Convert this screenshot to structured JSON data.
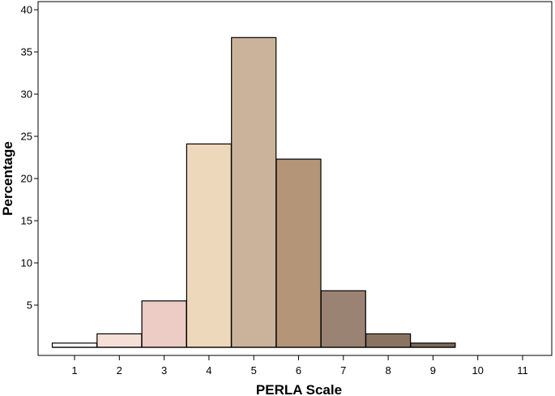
{
  "chart_data": {
    "type": "bar",
    "title": "",
    "xlabel": "PERLA Scale",
    "ylabel": "Percentage",
    "categories": [
      "1",
      "2",
      "3",
      "4",
      "5",
      "6",
      "7",
      "8",
      "9",
      "10",
      "11"
    ],
    "values": [
      0.5,
      1.6,
      5.5,
      24.1,
      36.7,
      22.3,
      6.7,
      1.6,
      0.5,
      0,
      0
    ],
    "ylim": [
      0,
      40
    ],
    "yticks": [
      5,
      10,
      15,
      20,
      25,
      30,
      35,
      40
    ],
    "grid": false,
    "legend": "none",
    "colors": [
      "#ffffff",
      "#f6dfd6",
      "#ecccc5",
      "#eed8bb",
      "#cbb39b",
      "#b59577",
      "#9b8374",
      "#8a7461",
      "#7a6a5a",
      "#ffffff",
      "#ffffff"
    ]
  }
}
